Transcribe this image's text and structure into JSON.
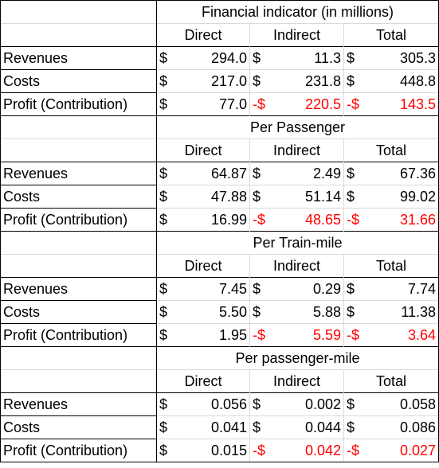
{
  "sections": [
    {
      "title": "Financial indicator (in millions)",
      "headers": [
        "Direct",
        "Indirect",
        "Total"
      ],
      "rows": [
        {
          "label": "Revenues",
          "cells": [
            {
              "cur": "$",
              "val": "294.0",
              "neg": false
            },
            {
              "cur": "$",
              "val": "11.3",
              "neg": false
            },
            {
              "cur": "$",
              "val": "305.3",
              "neg": false
            }
          ]
        },
        {
          "label": "Costs",
          "cells": [
            {
              "cur": "$",
              "val": "217.0",
              "neg": false
            },
            {
              "cur": "$",
              "val": "231.8",
              "neg": false
            },
            {
              "cur": "$",
              "val": "448.8",
              "neg": false
            }
          ]
        },
        {
          "label": "Profit (Contribution)",
          "cells": [
            {
              "cur": "$",
              "val": "77.0",
              "neg": false
            },
            {
              "cur": "-$",
              "val": "220.5",
              "neg": true
            },
            {
              "cur": "-$",
              "val": "143.5",
              "neg": true
            }
          ]
        }
      ]
    },
    {
      "title": "Per Passenger",
      "headers": [
        "Direct",
        "Indirect",
        "Total"
      ],
      "rows": [
        {
          "label": "Revenues",
          "cells": [
            {
              "cur": "$",
              "val": "64.87",
              "neg": false
            },
            {
              "cur": "$",
              "val": "2.49",
              "neg": false
            },
            {
              "cur": "$",
              "val": "67.36",
              "neg": false
            }
          ]
        },
        {
          "label": "Costs",
          "cells": [
            {
              "cur": "$",
              "val": "47.88",
              "neg": false
            },
            {
              "cur": "$",
              "val": "51.14",
              "neg": false
            },
            {
              "cur": "$",
              "val": "99.02",
              "neg": false
            }
          ]
        },
        {
          "label": "Profit (Contribution)",
          "cells": [
            {
              "cur": "$",
              "val": "16.99",
              "neg": false
            },
            {
              "cur": "-$",
              "val": "48.65",
              "neg": true
            },
            {
              "cur": "-$",
              "val": "31.66",
              "neg": true
            }
          ]
        }
      ]
    },
    {
      "title": "Per Train-mile",
      "headers": [
        "Direct",
        "Indirect",
        "Total"
      ],
      "rows": [
        {
          "label": "Revenues",
          "cells": [
            {
              "cur": "$",
              "val": "7.45",
              "neg": false
            },
            {
              "cur": "$",
              "val": "0.29",
              "neg": false
            },
            {
              "cur": "$",
              "val": "7.74",
              "neg": false
            }
          ]
        },
        {
          "label": "Costs",
          "cells": [
            {
              "cur": "$",
              "val": "5.50",
              "neg": false
            },
            {
              "cur": "$",
              "val": "5.88",
              "neg": false
            },
            {
              "cur": "$",
              "val": "11.38",
              "neg": false
            }
          ]
        },
        {
          "label": "Profit (Contribution)",
          "cells": [
            {
              "cur": "$",
              "val": "1.95",
              "neg": false
            },
            {
              "cur": "-$",
              "val": "5.59",
              "neg": true
            },
            {
              "cur": "-$",
              "val": "3.64",
              "neg": true
            }
          ]
        }
      ]
    },
    {
      "title": "Per passenger-mile",
      "headers": [
        "Direct",
        "Indirect",
        "Total"
      ],
      "rows": [
        {
          "label": "Revenues",
          "cells": [
            {
              "cur": "$",
              "val": "0.056",
              "neg": false
            },
            {
              "cur": "$",
              "val": "0.002",
              "neg": false
            },
            {
              "cur": "$",
              "val": "0.058",
              "neg": false
            }
          ]
        },
        {
          "label": "Costs",
          "cells": [
            {
              "cur": "$",
              "val": "0.041",
              "neg": false
            },
            {
              "cur": "$",
              "val": "0.044",
              "neg": false
            },
            {
              "cur": "$",
              "val": "0.086",
              "neg": false
            }
          ]
        },
        {
          "label": "Profit (Contribution)",
          "cells": [
            {
              "cur": "$",
              "val": "0.015",
              "neg": false
            },
            {
              "cur": "-$",
              "val": "0.042",
              "neg": true
            },
            {
              "cur": "-$",
              "val": "0.027",
              "neg": true
            }
          ]
        }
      ]
    }
  ],
  "colors": {
    "negative": "#ff0000",
    "text": "#000000"
  }
}
